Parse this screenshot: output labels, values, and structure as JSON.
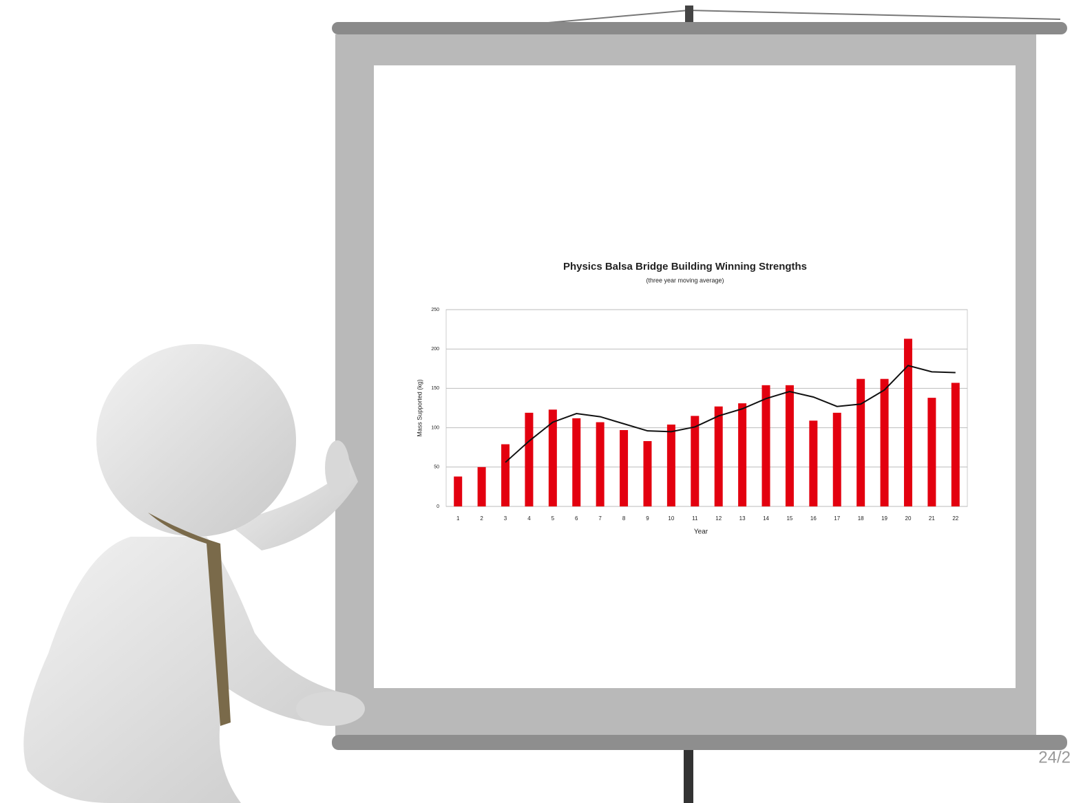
{
  "chart_data": {
    "type": "bar",
    "title": "Physics Balsa Bridge Building Winning Strengths",
    "subtitle": "(three year moving average)",
    "x_label": "Year",
    "y_label": "Mass Supported (kg)",
    "categories": [
      "1",
      "2",
      "3",
      "4",
      "5",
      "6",
      "7",
      "8",
      "9",
      "10",
      "11",
      "12",
      "13",
      "14",
      "15",
      "16",
      "17",
      "18",
      "19",
      "20",
      "21",
      "22"
    ],
    "values": [
      38,
      50,
      79,
      119,
      123,
      112,
      107,
      97,
      83,
      104,
      115,
      127,
      131,
      154,
      154,
      109,
      119,
      162,
      162,
      213,
      138,
      157
    ],
    "color": "#e3000f",
    "line": {
      "values": [
        null,
        null,
        56,
        83,
        107,
        118,
        114,
        105,
        96,
        95,
        101,
        115,
        124,
        137,
        146,
        139,
        127,
        130,
        148,
        179,
        171,
        170
      ],
      "color": "#111111"
    },
    "ylim": [
      0,
      250
    ],
    "yticks": [
      0,
      50,
      100,
      150,
      200,
      250
    ],
    "grid": true
  },
  "page_number": "24/2"
}
